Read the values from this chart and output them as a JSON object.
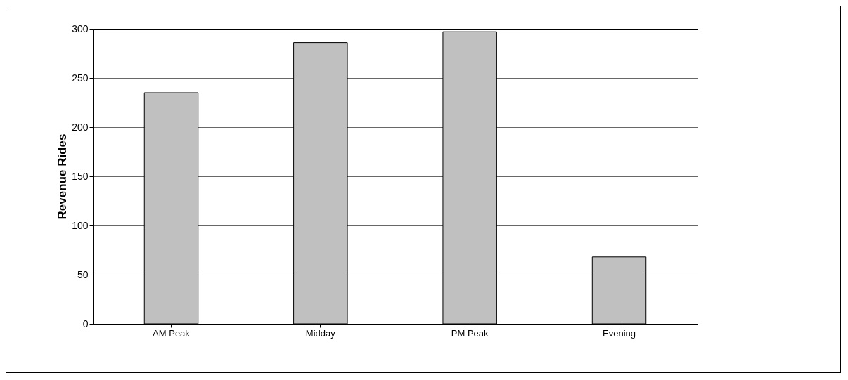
{
  "chart_data": {
    "type": "bar",
    "ylabel": "Revenue Rides",
    "categories": [
      "AM Peak",
      "Midday",
      "PM Peak",
      "Evening"
    ],
    "values": [
      235,
      286,
      297,
      68
    ],
    "color": "#c0c0c0",
    "ylim": [
      0,
      300
    ],
    "yticks": [
      0,
      50,
      100,
      150,
      200,
      250,
      300
    ],
    "grid": "y"
  }
}
